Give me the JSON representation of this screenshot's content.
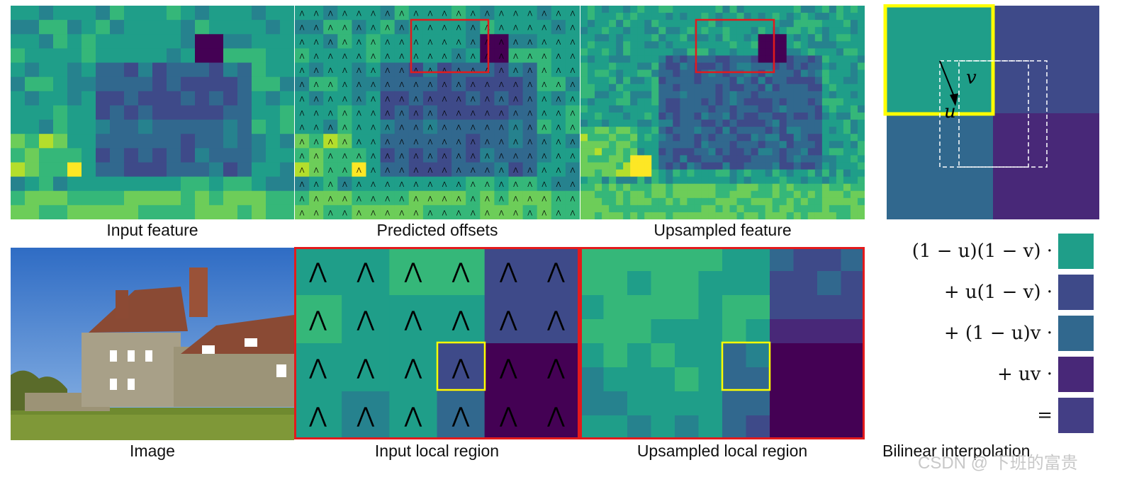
{
  "captions": {
    "input_feature": "Input feature",
    "predicted_offsets": "Predicted offsets",
    "upsampled_feature": "Upsampled feature",
    "image": "Image",
    "input_local_region": "Input local region",
    "upsampled_local_region": "Upsampled local region",
    "bilinear": "Bilinear interpolation"
  },
  "interp_labels": {
    "u": "u",
    "v": "v"
  },
  "formula": [
    {
      "text": "(1 − u)(1 − v) ·",
      "color": "#1f9e89"
    },
    {
      "text": "+ u(1 − v) ·",
      "color": "#3e4a89"
    },
    {
      "text": "+ (1 − u)v ·",
      "color": "#31688e"
    },
    {
      "text": "+ uv ·",
      "color": "#482878"
    },
    {
      "text": "=",
      "color": "#433e85"
    }
  ],
  "watermark": "CSDN @ 下班的富贵",
  "colors": {
    "highlight_red": "#e31a1c",
    "highlight_yellow": "#ffff00",
    "viridis_teal": "#1f9e89",
    "viridis_purple": "#482878",
    "sky": "#3a78c8",
    "grass": "#6f8a2f"
  }
}
